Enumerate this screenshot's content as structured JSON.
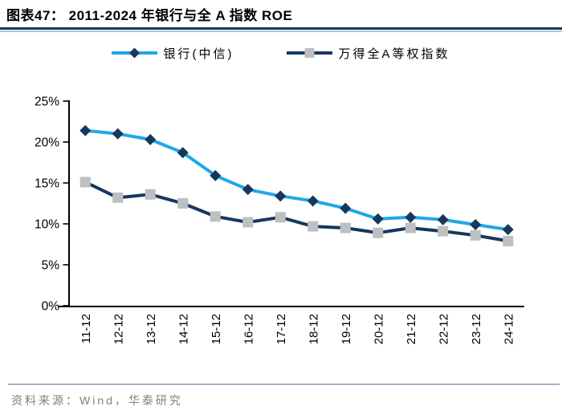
{
  "header": {
    "title": "图表47：  2011-2024 年银行与全 A 指数 ROE"
  },
  "footer": {
    "source": "资料来源：Wind，华泰研究"
  },
  "colors": {
    "title_rule_dark": "#17375E",
    "title_rule_light": "#A9C2DE",
    "footer_rule": "#9FB3CC",
    "footer_text": "#7F7F7F",
    "axis": "#000000",
    "bank_line": "#1FA8E8",
    "bank_marker": "#17375E",
    "alla_line": "#17375E",
    "alla_marker": "#BFBFBF"
  },
  "chart_data": {
    "type": "line",
    "title": "2011-2024 年银行与全 A 指数 ROE",
    "categories": [
      "11-12",
      "12-12",
      "13-12",
      "14-12",
      "15-12",
      "16-12",
      "17-12",
      "18-12",
      "19-12",
      "20-12",
      "21-12",
      "22-12",
      "23-12",
      "24-12"
    ],
    "series": [
      {
        "name": "银行(中信)",
        "line_color": "#1FA8E8",
        "marker": "diamond",
        "marker_color": "#17375E",
        "values": [
          21.4,
          21.0,
          20.3,
          18.7,
          15.9,
          14.2,
          13.4,
          12.8,
          11.9,
          10.6,
          10.8,
          10.5,
          9.9,
          9.3
        ]
      },
      {
        "name": "万得全A等权指数",
        "line_color": "#17375E",
        "marker": "square",
        "marker_color": "#BFBFBF",
        "values": [
          15.1,
          13.2,
          13.6,
          12.5,
          10.9,
          10.2,
          10.8,
          9.7,
          9.5,
          8.9,
          9.5,
          9.1,
          8.6,
          7.9
        ]
      }
    ],
    "ylim": [
      0,
      25
    ],
    "ytick_step": 5,
    "ytick_labels": [
      "0%",
      "5%",
      "10%",
      "15%",
      "20%",
      "25%"
    ],
    "ylabel_format": "percent",
    "grid": false,
    "legend_position": "top"
  }
}
